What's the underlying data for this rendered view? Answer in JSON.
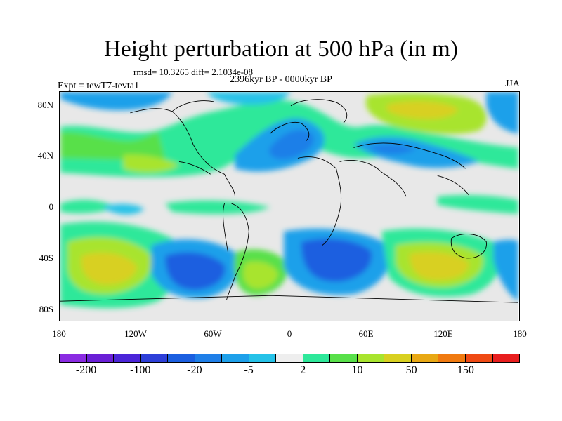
{
  "title": "Height perturbation at 500 hPa (in m)",
  "stats": "rmsd= 10.3265 diff= 2.1034e-08",
  "period": "2396kyr BP - 0000kyr BP",
  "experiment": "Expt = tewT7-tevta1",
  "season": "JJA",
  "lat_labels": [
    "80N",
    "40N",
    "0",
    "40S",
    "80S"
  ],
  "lon_labels": [
    "180",
    "120W",
    "60W",
    "0",
    "60E",
    "120E",
    "180"
  ],
  "colorbar": {
    "colors": [
      "#8a2be2",
      "#6a1fd6",
      "#4b25d8",
      "#2d3fd8",
      "#1b5fe0",
      "#1f7fe8",
      "#1ea0ea",
      "#26c2e8",
      "#eeeeee",
      "#2ee89a",
      "#58e04a",
      "#a8e42e",
      "#d8d020",
      "#e8a814",
      "#f07a10",
      "#ef4a14",
      "#e81e1e"
    ],
    "labels": [
      "-200",
      "-100",
      "-20",
      "-5",
      "2",
      "10",
      "50",
      "150"
    ]
  }
}
